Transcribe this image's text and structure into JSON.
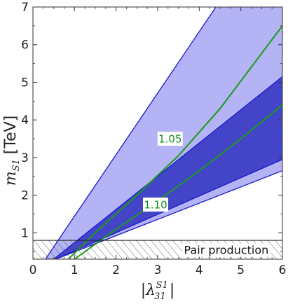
{
  "chart_data": {
    "type": "area",
    "title": "",
    "x_label_parts": [
      "|λ",
      "31",
      "S1",
      "|"
    ],
    "y_label_parts": [
      "m",
      "S1",
      " [TeV]"
    ],
    "xlim": [
      0,
      6
    ],
    "ylim": [
      0.3,
      7
    ],
    "x_ticks": [
      0,
      1,
      2,
      3,
      4,
      5,
      6
    ],
    "y_ticks": [
      1,
      2,
      3,
      4,
      5,
      6,
      7
    ],
    "grid": false,
    "colors": {
      "outer_band_fill": "#b3b3f5",
      "inner_band_fill": "#4444c8",
      "band_edge": "#1a1acc",
      "contour": "#1a9a1a",
      "excluded_hatch": "#555555"
    },
    "bands": [
      {
        "name": "outer",
        "lower": [
          [
            0.55,
            0.3
          ],
          [
            6.0,
            2.65
          ]
        ],
        "upper": [
          [
            0.3,
            0.3
          ],
          [
            4.4,
            7.0
          ]
        ]
      },
      {
        "name": "inner",
        "lower": [
          [
            0.55,
            0.3
          ],
          [
            6.0,
            2.95
          ]
        ],
        "upper": [
          [
            0.5,
            0.3
          ],
          [
            6.0,
            5.15
          ]
        ]
      }
    ],
    "contours": [
      {
        "label": "1.05",
        "points": [
          [
            0.85,
            0.3
          ],
          [
            1.5,
            1.0
          ],
          [
            2.5,
            2.0
          ],
          [
            3.5,
            3.05
          ],
          [
            4.5,
            4.3
          ],
          [
            6.0,
            6.5
          ]
        ],
        "label_at": [
          3.3,
          3.5
        ]
      },
      {
        "label": "1.10",
        "points": [
          [
            1.0,
            0.3
          ],
          [
            2.0,
            1.1
          ],
          [
            3.0,
            1.85
          ],
          [
            4.0,
            2.65
          ],
          [
            5.0,
            3.5
          ],
          [
            6.0,
            4.4
          ]
        ],
        "label_at": [
          2.95,
          1.75
        ]
      }
    ],
    "excluded_region": {
      "label": "Pair production",
      "y_max": 0.8
    }
  }
}
